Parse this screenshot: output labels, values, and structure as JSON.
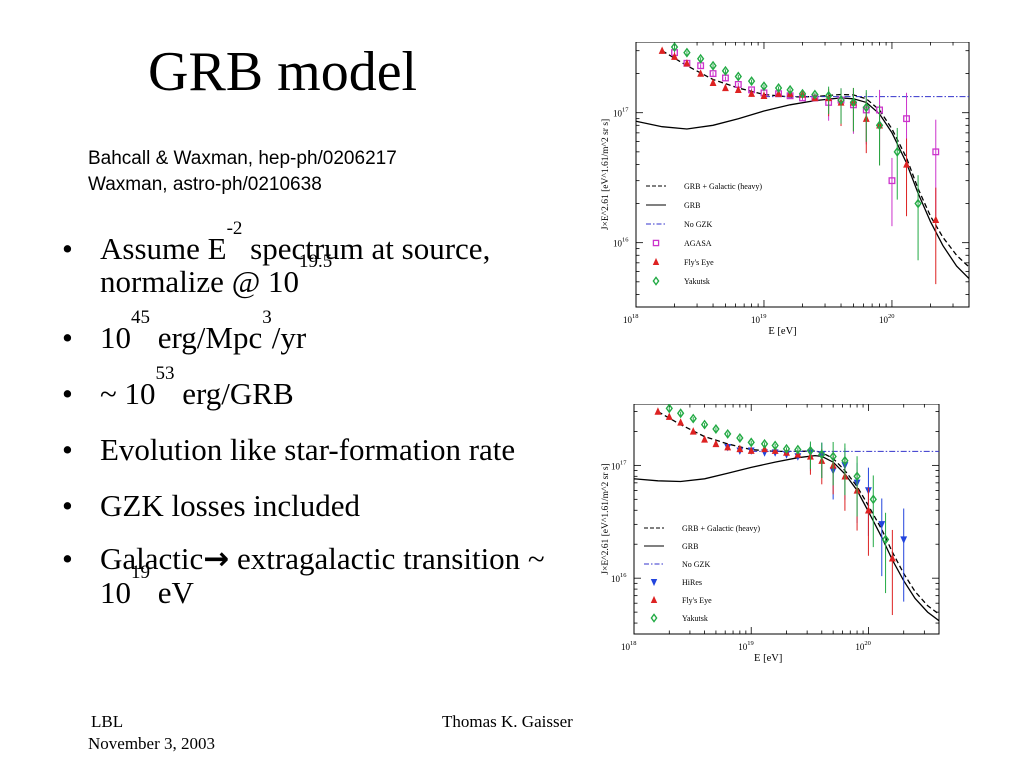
{
  "slide": {
    "title": "GRB model",
    "references": [
      "Bahcall & Waxman, hep-ph/0206217",
      "Waxman, astro-ph/0210638"
    ],
    "bullets": [
      {
        "parts": [
          {
            "t": "Assume E"
          },
          {
            "sup": "-2"
          },
          {
            "t": " spectrum at source, normalize @ 10"
          },
          {
            "sup": "19.5"
          }
        ]
      },
      {
        "parts": [
          {
            "t": "10"
          },
          {
            "sup": "45"
          },
          {
            "t": " erg/Mpc"
          },
          {
            "sup": "3"
          },
          {
            "t": "/yr"
          }
        ]
      },
      {
        "parts": [
          {
            "t": "~ 10"
          },
          {
            "sup": "53"
          },
          {
            "t": " erg/GRB"
          }
        ]
      },
      {
        "parts": [
          {
            "t": "Evolution like star-formation rate"
          }
        ]
      },
      {
        "parts": [
          {
            "t": "GZK losses included"
          }
        ]
      },
      {
        "parts": [
          {
            "t": "Galactic"
          },
          {
            "arrow": "→"
          },
          {
            "t": " extragalactic transition ~ 10"
          },
          {
            "sup": "19"
          },
          {
            "t": " eV"
          }
        ]
      }
    ],
    "footer": {
      "left_line1": "LBL",
      "left_line2": "November 3, 2003",
      "center": "Thomas K. Gaisser"
    }
  },
  "chart_data": [
    {
      "type": "scatter",
      "xlabel": "E [eV]",
      "ylabel": "J×E^2.61 [eV^1.61/m^2 sr s]",
      "xscale": "log",
      "yscale": "log",
      "xlim": [
        1e+18,
        4e+20
      ],
      "ylim": [
        3200000000000000.0,
        3.5e+17
      ],
      "x_ticks": [
        {
          "base": "10",
          "exp": "18"
        },
        {
          "base": "10",
          "exp": "19"
        },
        {
          "base": "10",
          "exp": "20"
        }
      ],
      "y_ticks": [
        {
          "base": "10",
          "exp": "16"
        },
        {
          "base": "10",
          "exp": "17"
        }
      ],
      "legend_position": "right-middle",
      "curves": [
        {
          "name": "GRB + Galactic (heavy)",
          "style": "dashed",
          "color": "#000000",
          "x": [
            1.6e+18,
            2.5e+18,
            4e+18,
            6.3e+18,
            1e+19,
            1.6e+19,
            2.5e+19,
            4e+19,
            5e+19,
            6.3e+19,
            8e+19,
            1e+20,
            1.3e+20,
            1.6e+20,
            2e+20,
            2.5e+20,
            3.2e+20,
            4e+20
          ],
          "y": [
            3e+17,
            2.3e+17,
            1.8e+17,
            1.55e+17,
            1.38e+17,
            1.32e+17,
            1.33e+17,
            1.38e+17,
            1.37e+17,
            1.28e+17,
            1.05e+17,
            7.5e+16,
            4.5e+16,
            2.6e+16,
            1.6e+16,
            1.1e+16,
            8000000000000000.0,
            6500000000000000.0
          ]
        },
        {
          "name": "GRB",
          "style": "solid",
          "color": "#000000",
          "x": [
            1e+18,
            1.6e+18,
            2.5e+18,
            4e+18,
            6.3e+18,
            1e+19,
            1.6e+19,
            2.5e+19,
            4e+19,
            5e+19,
            6.3e+19,
            8e+19,
            1e+20,
            1.3e+20,
            1.6e+20,
            2e+20,
            2.5e+20,
            3.2e+20,
            4e+20
          ],
          "y": [
            8.6e+16,
            7.8e+16,
            7.5e+16,
            8e+16,
            9e+16,
            1.03e+17,
            1.15e+17,
            1.24e+17,
            1.3e+17,
            1.28e+17,
            1.2e+17,
            9.8e+16,
            7e+16,
            4.1e+16,
            2.4e+16,
            1.45e+16,
            9500000000000000.0,
            6600000000000000.0,
            5300000000000000.0
          ]
        },
        {
          "name": "No GZK",
          "style": "dashdot",
          "color": "#3333cc",
          "x": [
            1e+19,
            4e+20
          ],
          "y": [
            1.33e+17,
            1.33e+17
          ]
        }
      ],
      "series": [
        {
          "name": "AGASA",
          "marker": "square",
          "color": "#cc33cc",
          "x": [
            2e+18,
            2.5e+18,
            3.2e+18,
            4e+18,
            5e+18,
            6.3e+18,
            8e+18,
            1e+19,
            1.3e+19,
            1.6e+19,
            2e+19,
            2.5e+19,
            3.2e+19,
            4e+19,
            5e+19,
            6.3e+19,
            8e+19,
            1e+20,
            1.3e+20,
            2.2e+20
          ],
          "y": [
            2.9e+17,
            2.4e+17,
            2.3e+17,
            2e+17,
            1.85e+17,
            1.65e+17,
            1.5e+17,
            1.42e+17,
            1.4e+17,
            1.35e+17,
            1.3e+17,
            1.3e+17,
            1.2e+17,
            1.25e+17,
            1.15e+17,
            1.05e+17,
            1.05e+17,
            3e+16,
            9e+16,
            5e+16
          ]
        },
        {
          "name": "Fly's Eye",
          "marker": "triangle-up",
          "color": "#dd2222",
          "x": [
            1.6e+18,
            2e+18,
            2.5e+18,
            3.2e+18,
            4e+18,
            5e+18,
            6.3e+18,
            8e+18,
            1e+19,
            1.3e+19,
            1.6e+19,
            2e+19,
            2.5e+19,
            3.2e+19,
            4e+19,
            5e+19,
            6.3e+19,
            8e+19,
            1.3e+20,
            2.2e+20
          ],
          "y": [
            3e+17,
            2.7e+17,
            2.4e+17,
            2e+17,
            1.7e+17,
            1.55e+17,
            1.5e+17,
            1.4e+17,
            1.35e+17,
            1.4e+17,
            1.4e+17,
            1.38e+17,
            1.3e+17,
            1.3e+17,
            1.2e+17,
            1.2e+17,
            9e+16,
            8e+16,
            4e+16,
            1.5e+16
          ]
        },
        {
          "name": "Yakutsk",
          "marker": "diamond",
          "color": "#22aa44",
          "x": [
            2e+18,
            2.5e+18,
            3.2e+18,
            4e+18,
            5e+18,
            6.3e+18,
            8e+18,
            1e+19,
            1.3e+19,
            1.6e+19,
            2e+19,
            2.5e+19,
            3.2e+19,
            4e+19,
            5e+19,
            6.3e+19,
            8e+19,
            1.1e+20,
            1.6e+20
          ],
          "y": [
            3.2e+17,
            2.9e+17,
            2.6e+17,
            2.3e+17,
            2.1e+17,
            1.9e+17,
            1.75e+17,
            1.6e+17,
            1.55e+17,
            1.5e+17,
            1.4e+17,
            1.38e+17,
            1.35e+17,
            1.25e+17,
            1.2e+17,
            1.1e+17,
            8e+16,
            5e+16,
            2e+16
          ]
        }
      ]
    },
    {
      "type": "scatter",
      "xlabel": "E [eV]",
      "ylabel": "J×E^2.61 [eV^1.61/m^2 sr s]",
      "xscale": "log",
      "yscale": "log",
      "xlim": [
        1e+18,
        4e+20
      ],
      "ylim": [
        3200000000000000.0,
        3.5e+17
      ],
      "x_ticks": [
        {
          "base": "10",
          "exp": "18"
        },
        {
          "base": "10",
          "exp": "19"
        },
        {
          "base": "10",
          "exp": "20"
        }
      ],
      "y_ticks": [
        {
          "base": "10",
          "exp": "16"
        },
        {
          "base": "10",
          "exp": "17"
        }
      ],
      "legend_position": "right-middle",
      "curves": [
        {
          "name": "GRB + Galactic (heavy)",
          "style": "dashed",
          "color": "#000000",
          "x": [
            1.6e+18,
            2.5e+18,
            4e+18,
            6.3e+18,
            1e+19,
            1.6e+19,
            2.5e+19,
            3.5e+19,
            4e+19,
            5e+19,
            6.3e+19,
            8e+19,
            1e+20,
            1.3e+20,
            1.6e+20,
            2e+20,
            2.5e+20,
            3.2e+20,
            4e+20
          ],
          "y": [
            3e+17,
            2.3e+17,
            1.8e+17,
            1.55e+17,
            1.38e+17,
            1.33e+17,
            1.33e+17,
            1.34e+17,
            1.3e+17,
            1.15e+17,
            9e+16,
            6.5e+16,
            4.4e+16,
            2.7e+16,
            1.7e+16,
            1.1e+16,
            7600000000000000.0,
            5700000000000000.0,
            4800000000000000.0
          ]
        },
        {
          "name": "GRB",
          "style": "solid",
          "color": "#000000",
          "x": [
            1e+18,
            1.6e+18,
            2.5e+18,
            4e+18,
            6.3e+18,
            1e+19,
            1.6e+19,
            2.5e+19,
            3.5e+19,
            4e+19,
            5e+19,
            6.3e+19,
            8e+19,
            1e+20,
            1.3e+20,
            1.6e+20,
            2e+20,
            2.5e+20,
            3.2e+20,
            4e+20
          ],
          "y": [
            7.6e+16,
            7.3e+16,
            7.2e+16,
            7.6e+16,
            8.5e+16,
            9.6e+16,
            1.07e+17,
            1.17e+17,
            1.22e+17,
            1.2e+17,
            1.07e+17,
            8.4e+16,
            6e+16,
            3.9e+16,
            2.3e+16,
            1.45e+16,
            9500000000000000.0,
            6600000000000000.0,
            5000000000000000.0,
            4200000000000000.0
          ]
        },
        {
          "name": "No GZK",
          "style": "dashdot",
          "color": "#3333cc",
          "x": [
            1e+19,
            4e+20
          ],
          "y": [
            1.33e+17,
            1.33e+17
          ]
        }
      ],
      "series": [
        {
          "name": "HiRes",
          "marker": "triangle-down",
          "color": "#2244dd",
          "x": [
            6.3e+18,
            8e+18,
            1e+19,
            1.3e+19,
            1.6e+19,
            2e+19,
            2.5e+19,
            3.2e+19,
            4e+19,
            5e+19,
            6.3e+19,
            8e+19,
            1e+20,
            1.3e+20,
            2e+20
          ],
          "y": [
            1.45e+17,
            1.35e+17,
            1.35e+17,
            1.3e+17,
            1.3e+17,
            1.25e+17,
            1.2e+17,
            1.3e+17,
            1.25e+17,
            9e+16,
            1e+17,
            7e+16,
            6e+16,
            3e+16,
            2.2e+16
          ]
        },
        {
          "name": "Fly's Eye",
          "marker": "triangle-up",
          "color": "#dd2222",
          "x": [
            1.6e+18,
            2e+18,
            2.5e+18,
            3.2e+18,
            4e+18,
            5e+18,
            6.3e+18,
            8e+18,
            1e+19,
            1.3e+19,
            1.6e+19,
            2e+19,
            2.5e+19,
            3.2e+19,
            4e+19,
            5e+19,
            6.3e+19,
            8e+19,
            1e+20,
            1.6e+20
          ],
          "y": [
            3e+17,
            2.7e+17,
            2.4e+17,
            2e+17,
            1.7e+17,
            1.55e+17,
            1.45e+17,
            1.4e+17,
            1.35e+17,
            1.4e+17,
            1.35e+17,
            1.3e+17,
            1.25e+17,
            1.2e+17,
            1.1e+17,
            1e+17,
            8e+16,
            6e+16,
            4e+16,
            1.5e+16
          ]
        },
        {
          "name": "Yakutsk",
          "marker": "diamond",
          "color": "#22aa44",
          "x": [
            2e+18,
            2.5e+18,
            3.2e+18,
            4e+18,
            5e+18,
            6.3e+18,
            8e+18,
            1e+19,
            1.3e+19,
            1.6e+19,
            2e+19,
            2.5e+19,
            3.2e+19,
            4e+19,
            5e+19,
            6.3e+19,
            8e+19,
            1.1e+20,
            1.4e+20
          ],
          "y": [
            3.2e+17,
            2.9e+17,
            2.6e+17,
            2.3e+17,
            2.1e+17,
            1.9e+17,
            1.75e+17,
            1.6e+17,
            1.55e+17,
            1.5e+17,
            1.4e+17,
            1.38e+17,
            1.35e+17,
            1.25e+17,
            1.2e+17,
            1.1e+17,
            8e+16,
            5e+16,
            2.2e+16
          ]
        }
      ]
    }
  ]
}
